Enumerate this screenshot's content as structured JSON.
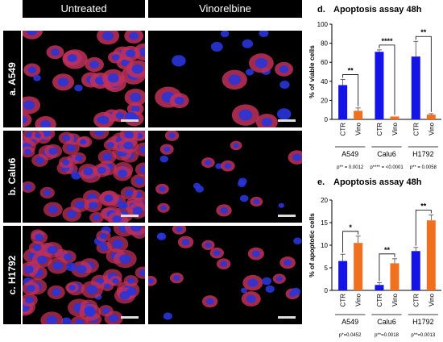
{
  "figure": {
    "column_headers": [
      "Untreated",
      "Vinorelbine"
    ],
    "row_labels": [
      "a. A549",
      "b. Calu6",
      "c. H1792"
    ]
  },
  "colors": {
    "ctr": "#1414e6",
    "vino": "#f07020",
    "cell_red": "#c0305a",
    "nucleus_blue": "#2a34d8",
    "background": "#000000"
  },
  "chart_data": [
    {
      "type": "bar",
      "panel": "d.",
      "title": "Apoptosis assay 48h",
      "ylabel": "% of viable cells",
      "ylim": [
        0,
        100
      ],
      "yticks": [
        0,
        20,
        40,
        60,
        80,
        100
      ],
      "groups": [
        "A549",
        "Calu6",
        "H1792"
      ],
      "bar_labels": [
        "CTR",
        "Vino"
      ],
      "values": [
        [
          36,
          9
        ],
        [
          71,
          3
        ],
        [
          66,
          5
        ]
      ],
      "errors": [
        [
          6,
          3
        ],
        [
          2,
          0
        ],
        [
          16,
          1
        ]
      ],
      "significance": [
        "**",
        "****",
        "**"
      ],
      "pvalues": [
        "p** = 0.0012",
        "p**** = <0.0001",
        "p** = 0.0058"
      ]
    },
    {
      "type": "bar",
      "panel": "e.",
      "title": "Apoptosis assay 48h",
      "ylabel": "% of apoptotic cells",
      "ylim": [
        0,
        20
      ],
      "yticks": [
        0,
        5,
        10,
        15,
        20
      ],
      "groups": [
        "A549",
        "Calu6",
        "H1792"
      ],
      "bar_labels": [
        "CTR",
        "Vino"
      ],
      "values": [
        [
          6.5,
          10.5
        ],
        [
          1.2,
          6.0
        ],
        [
          8.7,
          15.5
        ]
      ],
      "errors": [
        [
          1.5,
          1.5
        ],
        [
          0.5,
          1.0
        ],
        [
          0.8,
          1.2
        ]
      ],
      "significance": [
        "*",
        "**",
        "**"
      ],
      "pvalues": [
        "p*=0.0452",
        "p**=0.0018",
        "p**=0.0013"
      ]
    }
  ]
}
